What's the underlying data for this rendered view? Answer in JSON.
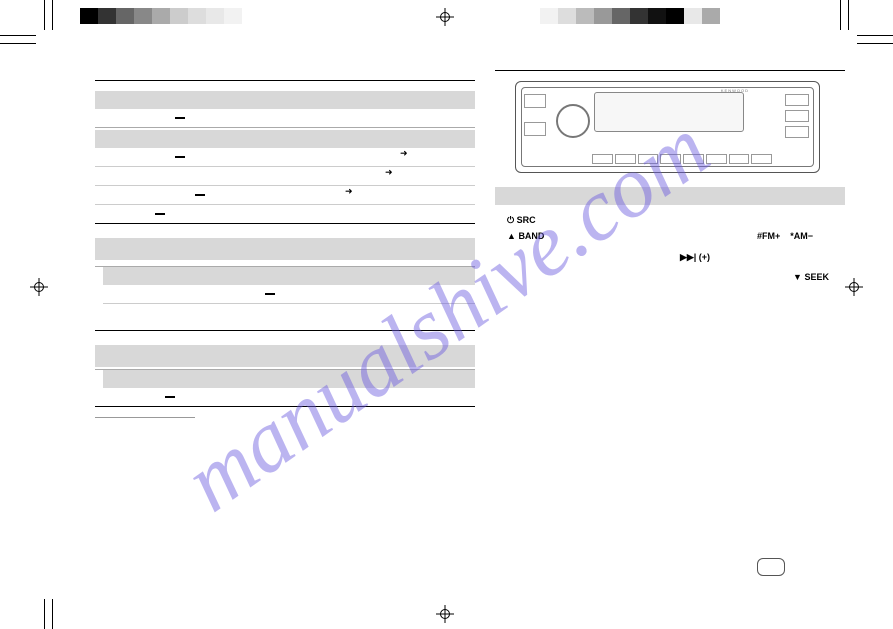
{
  "watermark": {
    "text": "manualshive.com",
    "color": "#6a5ae0"
  },
  "colorbars": {
    "left": [
      "#000000",
      "#333333",
      "#666666",
      "#888888",
      "#aaaaaa",
      "#cccccc",
      "#dddddd",
      "#e8e8e8",
      "#f2f2f2",
      "#ffffff"
    ],
    "right": [
      "#f2f2f2",
      "#dddddd",
      "#bbbbbb",
      "#999999",
      "#666666",
      "#333333",
      "#111111",
      "#000000",
      "#e8e8e8",
      "#aaaaaa"
    ]
  },
  "radio": {
    "brand": "KENWOOD"
  },
  "labels": {
    "power": "⏻",
    "src": "SRC",
    "band_tri": "▲",
    "band": "BAND",
    "fm": "#FM+",
    "am": "*AM−",
    "ff": "▶▶| (+)",
    "seek_tri": "▼",
    "seek": "SEEK"
  }
}
